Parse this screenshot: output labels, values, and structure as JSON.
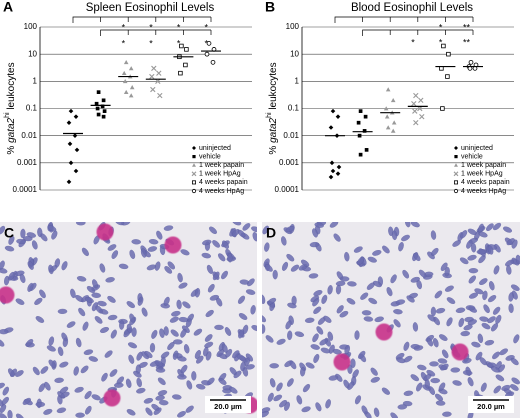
{
  "chart_data": [
    {
      "type": "scatter",
      "panel": "A",
      "title": "Spleen Eosinophil Levels",
      "ylabel": [
        "% ",
        "gata2",
        "hi",
        " leukocytes"
      ],
      "ylim": [
        0.0001,
        100
      ],
      "yticks": [
        0.0001,
        0.001,
        0.01,
        0.1,
        1,
        10,
        100
      ],
      "log_y": true,
      "grid": true,
      "legend": "lower right",
      "series": [
        {
          "name": "uninjected",
          "color": "#000000",
          "marker": "diamond",
          "values": [
            0.08,
            0.05,
            0.03,
            0.01,
            0.005,
            0.003,
            0.001,
            0.0005,
            0.0002
          ],
          "mean": 0.012
        },
        {
          "name": "vehicle",
          "color": "#000000",
          "marker": "square",
          "values": [
            0.4,
            0.2,
            0.15,
            0.12,
            0.1,
            0.08,
            0.06,
            0.05
          ],
          "mean": 0.13
        },
        {
          "name": "1 week papain",
          "color": "#999999",
          "marker": "triangle",
          "values": [
            5,
            3,
            2,
            1.5,
            1,
            0.6,
            0.4,
            0.3
          ],
          "mean": 1.5
        },
        {
          "name": "1 week HpAg",
          "color": "#999999",
          "marker": "cross",
          "values": [
            3,
            2,
            1.5,
            1,
            0.5,
            0.3
          ],
          "mean": 1.2
        },
        {
          "name": "4 weeks papain",
          "color": "#000000",
          "marker": "open-square",
          "values": [
            20,
            15,
            8,
            4,
            2
          ],
          "mean": 8
        },
        {
          "name": "4 weeks HpAg",
          "color": "#000000",
          "marker": "open-circle",
          "values": [
            25,
            15,
            10,
            5
          ],
          "mean": 13
        }
      ],
      "annotations": [
        {
          "text": "*"
        },
        {
          "text": "*"
        },
        {
          "text": "*"
        },
        {
          "text": "*"
        },
        {
          "text": "*"
        },
        {
          "text": "*"
        },
        {
          "text": "*"
        },
        {
          "text": "*"
        }
      ]
    },
    {
      "type": "scatter",
      "panel": "B",
      "title": "Blood Eosinophil Levels",
      "ylabel": [
        "% ",
        "gata2",
        "hi",
        " leukocytes"
      ],
      "ylim": [
        0.0001,
        100
      ],
      "yticks": [
        0.0001,
        0.001,
        0.01,
        0.1,
        1,
        10,
        100
      ],
      "log_y": true,
      "grid": true,
      "legend": "lower right",
      "series": [
        {
          "name": "uninjected",
          "color": "#000000",
          "marker": "diamond",
          "values": [
            0.08,
            0.05,
            0.02,
            0.01,
            0.001,
            0.0007,
            0.0005,
            0.0004,
            0.0003
          ],
          "mean": 0.01
        },
        {
          "name": "vehicle",
          "color": "#000000",
          "marker": "square",
          "values": [
            0.08,
            0.05,
            0.03,
            0.015,
            0.01,
            0.003,
            0.002
          ],
          "mean": 0.014
        },
        {
          "name": "1 week papain",
          "color": "#999999",
          "marker": "triangle",
          "values": [
            0.5,
            0.2,
            0.1,
            0.07,
            0.05,
            0.03,
            0.02,
            0.015
          ],
          "mean": 0.07
        },
        {
          "name": "1 week HpAg",
          "color": "#999999",
          "marker": "cross",
          "values": [
            0.3,
            0.2,
            0.15,
            0.1,
            0.08,
            0.05,
            0.03
          ],
          "mean": 0.12
        },
        {
          "name": "4 weeks papain",
          "color": "#000000",
          "marker": "open-square",
          "values": [
            20,
            10,
            3,
            1.5,
            0.1
          ],
          "mean": 3.5
        },
        {
          "name": "4 weeks HpAg",
          "color": "#000000",
          "marker": "open-circle",
          "values": [
            5,
            4,
            3.5,
            3,
            3
          ],
          "mean": 3.5
        }
      ],
      "annotations": [
        {
          "text": "*"
        },
        {
          "text": "**"
        },
        {
          "text": "*"
        },
        {
          "text": "*"
        },
        {
          "text": "**"
        }
      ]
    }
  ],
  "panels": [
    {
      "label": "C",
      "scale_bar": "20.0 µm"
    },
    {
      "label": "D",
      "scale_bar": "20.0 µm"
    }
  ]
}
